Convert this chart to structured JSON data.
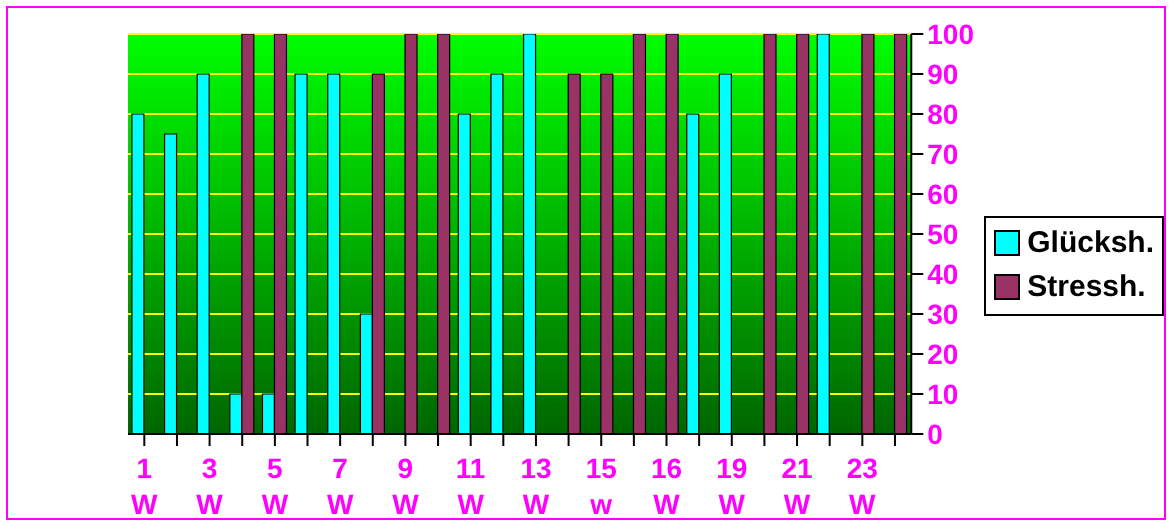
{
  "chart_data": {
    "type": "bar",
    "categories": [
      "1 W",
      null,
      "3 W",
      null,
      "5 W",
      null,
      "7 W",
      null,
      "9 W",
      null,
      "11 W",
      null,
      "13 W",
      null,
      "15 w",
      null,
      "16 W",
      null,
      "19 W",
      null,
      "21 W",
      null,
      "23 W",
      null
    ],
    "series": [
      {
        "name": "Glücksh.",
        "color": "#00ffff",
        "values": [
          80,
          75,
          90,
          10,
          10,
          90,
          90,
          30,
          0,
          0,
          80,
          90,
          100,
          null,
          null,
          null,
          null,
          80,
          90,
          null,
          null,
          100,
          null,
          null
        ]
      },
      {
        "name": "Stressh.",
        "color": "#993366",
        "values": [
          null,
          null,
          null,
          100,
          100,
          null,
          null,
          90,
          100,
          100,
          null,
          null,
          null,
          90,
          90,
          100,
          100,
          null,
          null,
          100,
          100,
          null,
          100,
          100
        ]
      }
    ],
    "ylim": [
      0,
      100
    ],
    "yticks": [
      0,
      10,
      20,
      30,
      40,
      50,
      60,
      70,
      80,
      90,
      100
    ],
    "grid": "y",
    "legend": "right"
  }
}
